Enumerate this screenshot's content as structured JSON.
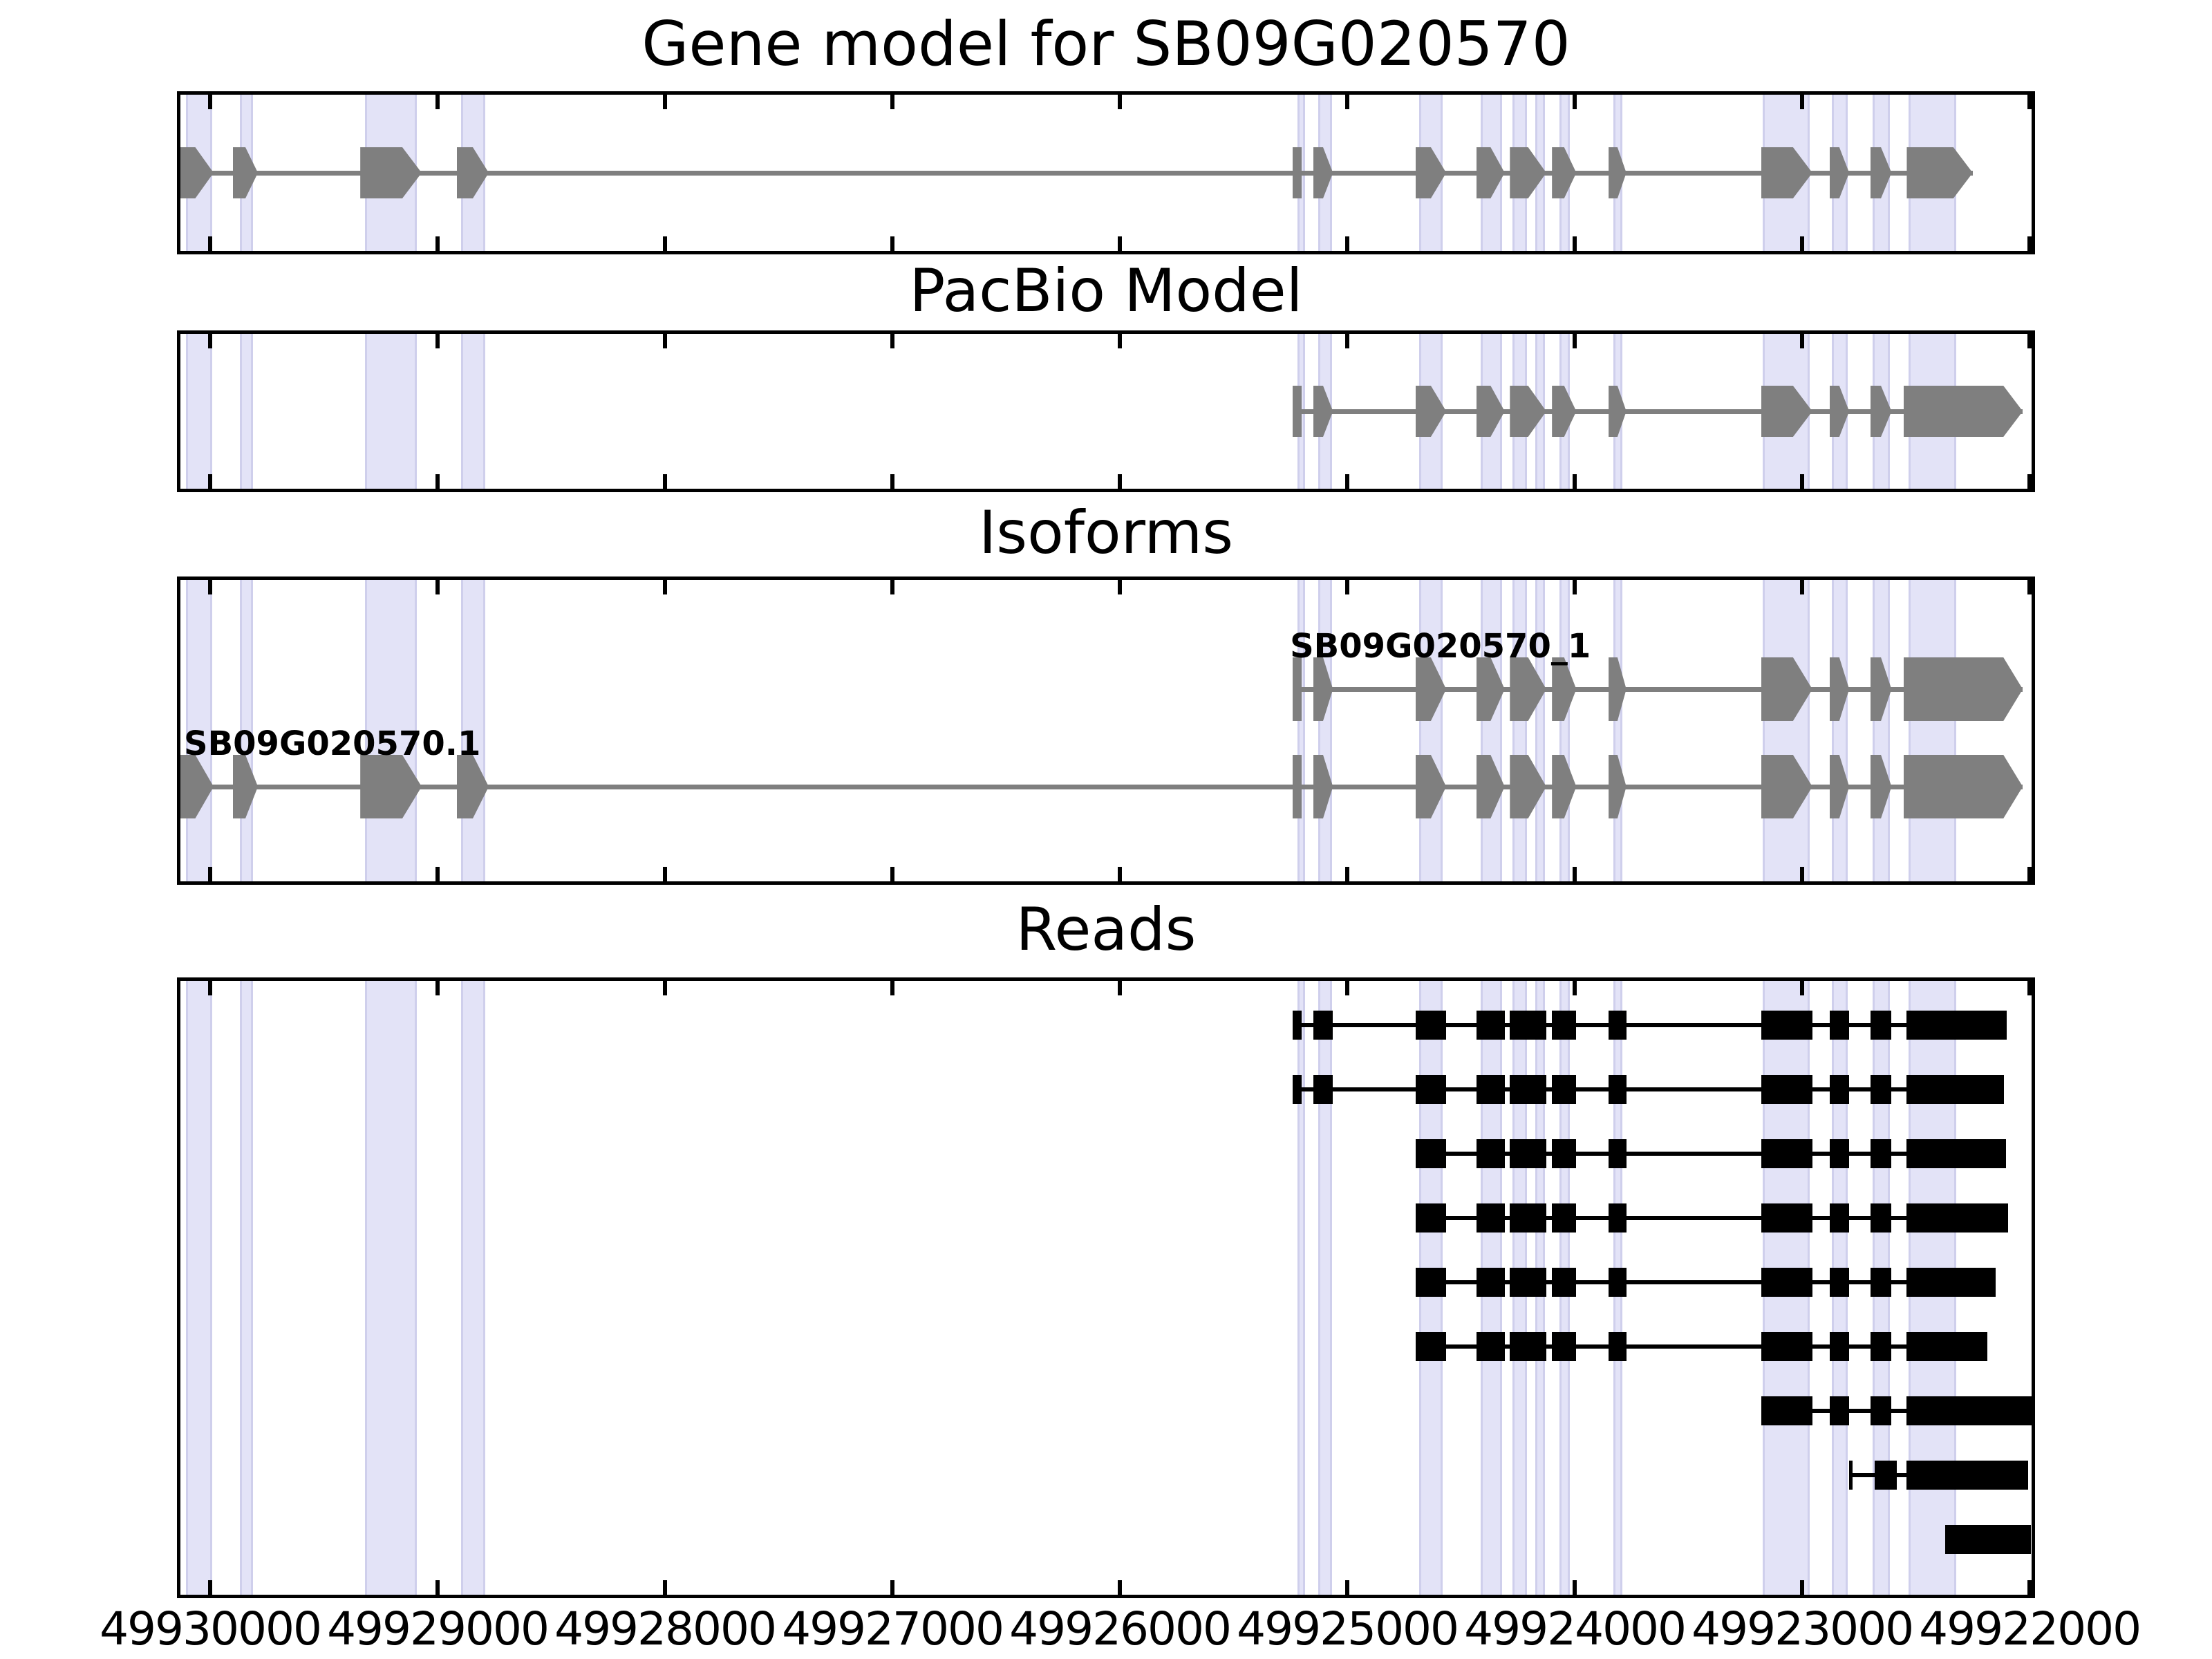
{
  "chart_data": {
    "type": "gene-model-tracks",
    "title": "Gene model for SB09G020570",
    "x_axis": {
      "orientation": "reversed",
      "domain_left_bp": 49930146,
      "domain_right_bp": 49921976,
      "tick_values": [
        49930000,
        49929000,
        49928000,
        49927000,
        49926000,
        49925000,
        49924000,
        49923000,
        49922000
      ],
      "tick_labels": [
        "49930000",
        "49929000",
        "49928000",
        "49927000",
        "49926000",
        "49925000",
        "49924000",
        "49923000",
        "49922000"
      ]
    },
    "colors": {
      "exon_gray": "#7f7f7f",
      "read_black": "#000000",
      "band_fill": "#e3e3f7",
      "band_edge": "#cfcfec",
      "axis_black": "#000000",
      "background": "#ffffff"
    },
    "highlight_regions": [
      [
        49930105,
        49929990
      ],
      [
        49929870,
        49929812
      ],
      [
        49929320,
        49929092
      ],
      [
        49928897,
        49928790
      ],
      [
        49925218,
        49925185
      ],
      [
        49925128,
        49925068
      ],
      [
        49924683,
        49924580
      ],
      [
        49924415,
        49924318
      ],
      [
        49924275,
        49924210
      ],
      [
        49924175,
        49924130
      ],
      [
        49924068,
        49924020
      ],
      [
        49923830,
        49923790
      ],
      [
        49923175,
        49922968
      ],
      [
        49922870,
        49922800
      ],
      [
        49922690,
        49922615
      ],
      [
        49922533,
        49922322
      ]
    ],
    "tracks": {
      "gene_model": {
        "title": "Gene model for SB09G020570",
        "exons": [
          [
            49930146,
            49929985
          ],
          [
            49929900,
            49929790
          ],
          [
            49929340,
            49929070
          ],
          [
            49928915,
            49928775
          ],
          [
            49925240,
            49925200
          ],
          [
            49925150,
            49925063
          ],
          [
            49924700,
            49924565
          ],
          [
            49924432,
            49924308
          ],
          [
            49924285,
            49924125
          ],
          [
            49924100,
            49923993
          ],
          [
            49923851,
            49923773
          ],
          [
            49923180,
            49922955
          ],
          [
            49922880,
            49922793
          ],
          [
            49922700,
            49922607
          ],
          [
            49922540,
            49922250
          ]
        ]
      },
      "pacbio": {
        "title": "PacBio Model",
        "exons": [
          [
            49925240,
            49925200
          ],
          [
            49925150,
            49925063
          ],
          [
            49924700,
            49924565
          ],
          [
            49924432,
            49924308
          ],
          [
            49924285,
            49924125
          ],
          [
            49924100,
            49923993
          ],
          [
            49923851,
            49923773
          ],
          [
            49923180,
            49922955
          ],
          [
            49922880,
            49922793
          ],
          [
            49922700,
            49922607
          ],
          [
            49922555,
            49922030
          ]
        ]
      },
      "isoforms": {
        "title": "Isoforms",
        "transcripts": [
          {
            "name": "SB09G020570_1",
            "exons": [
              [
                49925240,
                49925200
              ],
              [
                49925150,
                49925063
              ],
              [
                49924700,
                49924565
              ],
              [
                49924432,
                49924308
              ],
              [
                49924285,
                49924125
              ],
              [
                49924100,
                49923993
              ],
              [
                49923851,
                49923773
              ],
              [
                49923180,
                49922955
              ],
              [
                49922880,
                49922793
              ],
              [
                49922700,
                49922607
              ],
              [
                49922555,
                49922030
              ]
            ]
          },
          {
            "name": "SB09G020570.1",
            "exons": [
              [
                49930146,
                49929985
              ],
              [
                49929900,
                49929790
              ],
              [
                49929340,
                49929070
              ],
              [
                49928915,
                49928775
              ],
              [
                49925240,
                49925200
              ],
              [
                49925150,
                49925063
              ],
              [
                49924700,
                49924565
              ],
              [
                49924432,
                49924308
              ],
              [
                49924285,
                49924125
              ],
              [
                49924100,
                49923993
              ],
              [
                49923851,
                49923773
              ],
              [
                49923180,
                49922955
              ],
              [
                49922880,
                49922793
              ],
              [
                49922700,
                49922607
              ],
              [
                49922555,
                49922030
              ]
            ]
          }
        ]
      },
      "reads": {
        "title": "Reads",
        "reads": [
          [
            [
              49925240,
              49925200
            ],
            [
              49925150,
              49925063
            ],
            [
              49924700,
              49924565
            ],
            [
              49924432,
              49924308
            ],
            [
              49924285,
              49924125
            ],
            [
              49924100,
              49923993
            ],
            [
              49923851,
              49923773
            ],
            [
              49923180,
              49922955
            ],
            [
              49922880,
              49922793
            ],
            [
              49922700,
              49922607
            ],
            [
              49922540,
              49922100
            ]
          ],
          [
            [
              49925240,
              49925200
            ],
            [
              49925150,
              49925063
            ],
            [
              49924700,
              49924565
            ],
            [
              49924432,
              49924308
            ],
            [
              49924285,
              49924125
            ],
            [
              49924100,
              49923993
            ],
            [
              49923851,
              49923773
            ],
            [
              49923180,
              49922955
            ],
            [
              49922880,
              49922793
            ],
            [
              49922700,
              49922607
            ],
            [
              49922540,
              49922112
            ]
          ],
          [
            [
              49924700,
              49924565
            ],
            [
              49924432,
              49924308
            ],
            [
              49924285,
              49924125
            ],
            [
              49924100,
              49923993
            ],
            [
              49923851,
              49923773
            ],
            [
              49923180,
              49922955
            ],
            [
              49922880,
              49922793
            ],
            [
              49922700,
              49922607
            ],
            [
              49922540,
              49922105
            ]
          ],
          [
            [
              49924700,
              49924565
            ],
            [
              49924432,
              49924308
            ],
            [
              49924285,
              49924125
            ],
            [
              49924100,
              49923993
            ],
            [
              49923851,
              49923773
            ],
            [
              49923180,
              49922955
            ],
            [
              49922880,
              49922793
            ],
            [
              49922700,
              49922607
            ],
            [
              49922540,
              49922095
            ]
          ],
          [
            [
              49924700,
              49924565
            ],
            [
              49924432,
              49924308
            ],
            [
              49924285,
              49924125
            ],
            [
              49924100,
              49923993
            ],
            [
              49923851,
              49923773
            ],
            [
              49923180,
              49922955
            ],
            [
              49922880,
              49922793
            ],
            [
              49922700,
              49922607
            ],
            [
              49922540,
              49922150
            ]
          ],
          [
            [
              49924700,
              49924565
            ],
            [
              49924432,
              49924308
            ],
            [
              49924285,
              49924125
            ],
            [
              49924100,
              49923993
            ],
            [
              49923851,
              49923773
            ],
            [
              49923180,
              49922955
            ],
            [
              49922880,
              49922793
            ],
            [
              49922700,
              49922607
            ],
            [
              49922540,
              49922185
            ]
          ],
          [
            [
              49923180,
              49922955
            ],
            [
              49922880,
              49922793
            ],
            [
              49922700,
              49922607
            ],
            [
              49922540,
              49921990
            ]
          ],
          [
            [
              49922795,
              49922778
            ],
            [
              49922680,
              49922585
            ],
            [
              49922540,
              49922005
            ]
          ],
          [
            [
              49922370,
              49921995
            ]
          ]
        ]
      }
    }
  }
}
